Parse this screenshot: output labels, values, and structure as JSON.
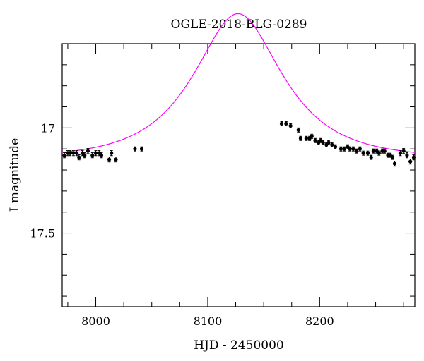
{
  "chart_data": {
    "type": "scatter",
    "title": "OGLE-2018-BLG-0289",
    "xlabel": "HJD - 2450000",
    "ylabel": "I magnitude",
    "xlim": [
      7970,
      8285
    ],
    "ylim": [
      17.85,
      16.6
    ],
    "y_inverted": true,
    "x_ticks": [
      {
        "value": 8000,
        "label": "8000"
      },
      {
        "value": 8100,
        "label": "8100"
      },
      {
        "value": 8200,
        "label": "8200"
      }
    ],
    "y_ticks": [
      {
        "value": 17.0,
        "label": "17"
      },
      {
        "value": 17.5,
        "label": "17.5"
      }
    ],
    "grid": false,
    "colors": {
      "points": "#000000",
      "model": "#ff00ff"
    },
    "series": [
      {
        "kind": "observations",
        "points": [
          [
            7972,
            17.13,
            0.012
          ],
          [
            7975,
            17.12,
            0.012
          ],
          [
            7977,
            17.12,
            0.012
          ],
          [
            7980,
            17.12,
            0.012
          ],
          [
            7983,
            17.12,
            0.012
          ],
          [
            7985,
            17.14,
            0.012
          ],
          [
            7988,
            17.12,
            0.012
          ],
          [
            7990,
            17.13,
            0.012
          ],
          [
            7993,
            17.11,
            0.012
          ],
          [
            7997,
            17.13,
            0.012
          ],
          [
            8000,
            17.12,
            0.012
          ],
          [
            8003,
            17.12,
            0.012
          ],
          [
            8005,
            17.13,
            0.012
          ],
          [
            8012,
            17.15,
            0.012
          ],
          [
            8014,
            17.12,
            0.012
          ],
          [
            8018,
            17.15,
            0.012
          ],
          [
            8035,
            17.1,
            0.01
          ],
          [
            8041,
            17.1,
            0.01
          ],
          [
            8166,
            16.98,
            0.01
          ],
          [
            8170,
            16.98,
            0.01
          ],
          [
            8174,
            16.99,
            0.01
          ],
          [
            8181,
            17.01,
            0.01
          ],
          [
            8183,
            17.05,
            0.01
          ],
          [
            8188,
            17.05,
            0.01
          ],
          [
            8191,
            17.05,
            0.01
          ],
          [
            8193,
            17.04,
            0.01
          ],
          [
            8196,
            17.06,
            0.01
          ],
          [
            8199,
            17.07,
            0.01
          ],
          [
            8201,
            17.06,
            0.01
          ],
          [
            8203,
            17.07,
            0.01
          ],
          [
            8206,
            17.08,
            0.01
          ],
          [
            8208,
            17.07,
            0.01
          ],
          [
            8211,
            17.08,
            0.01
          ],
          [
            8214,
            17.09,
            0.01
          ],
          [
            8219,
            17.1,
            0.01
          ],
          [
            8222,
            17.1,
            0.01
          ],
          [
            8225,
            17.09,
            0.01
          ],
          [
            8227,
            17.1,
            0.01
          ],
          [
            8230,
            17.1,
            0.01
          ],
          [
            8233,
            17.11,
            0.01
          ],
          [
            8236,
            17.1,
            0.01
          ],
          [
            8239,
            17.12,
            0.01
          ],
          [
            8243,
            17.12,
            0.01
          ],
          [
            8246,
            17.14,
            0.01
          ],
          [
            8248,
            17.11,
            0.01
          ],
          [
            8251,
            17.11,
            0.01
          ],
          [
            8253,
            17.12,
            0.01
          ],
          [
            8256,
            17.11,
            0.01
          ],
          [
            8258,
            17.11,
            0.01
          ],
          [
            8261,
            17.13,
            0.01
          ],
          [
            8263,
            17.13,
            0.01
          ],
          [
            8265,
            17.14,
            0.01
          ],
          [
            8267,
            17.17,
            0.012
          ],
          [
            8272,
            17.12,
            0.012
          ],
          [
            8275,
            17.11,
            0.012
          ],
          [
            8278,
            17.13,
            0.012
          ],
          [
            8281,
            17.16,
            0.012
          ],
          [
            8284,
            17.14,
            0.012
          ]
        ]
      },
      {
        "kind": "model",
        "model": {
          "t0": 8127,
          "u0": 0.6,
          "tE": 62,
          "baseline_mag": 17.145
        }
      }
    ]
  }
}
